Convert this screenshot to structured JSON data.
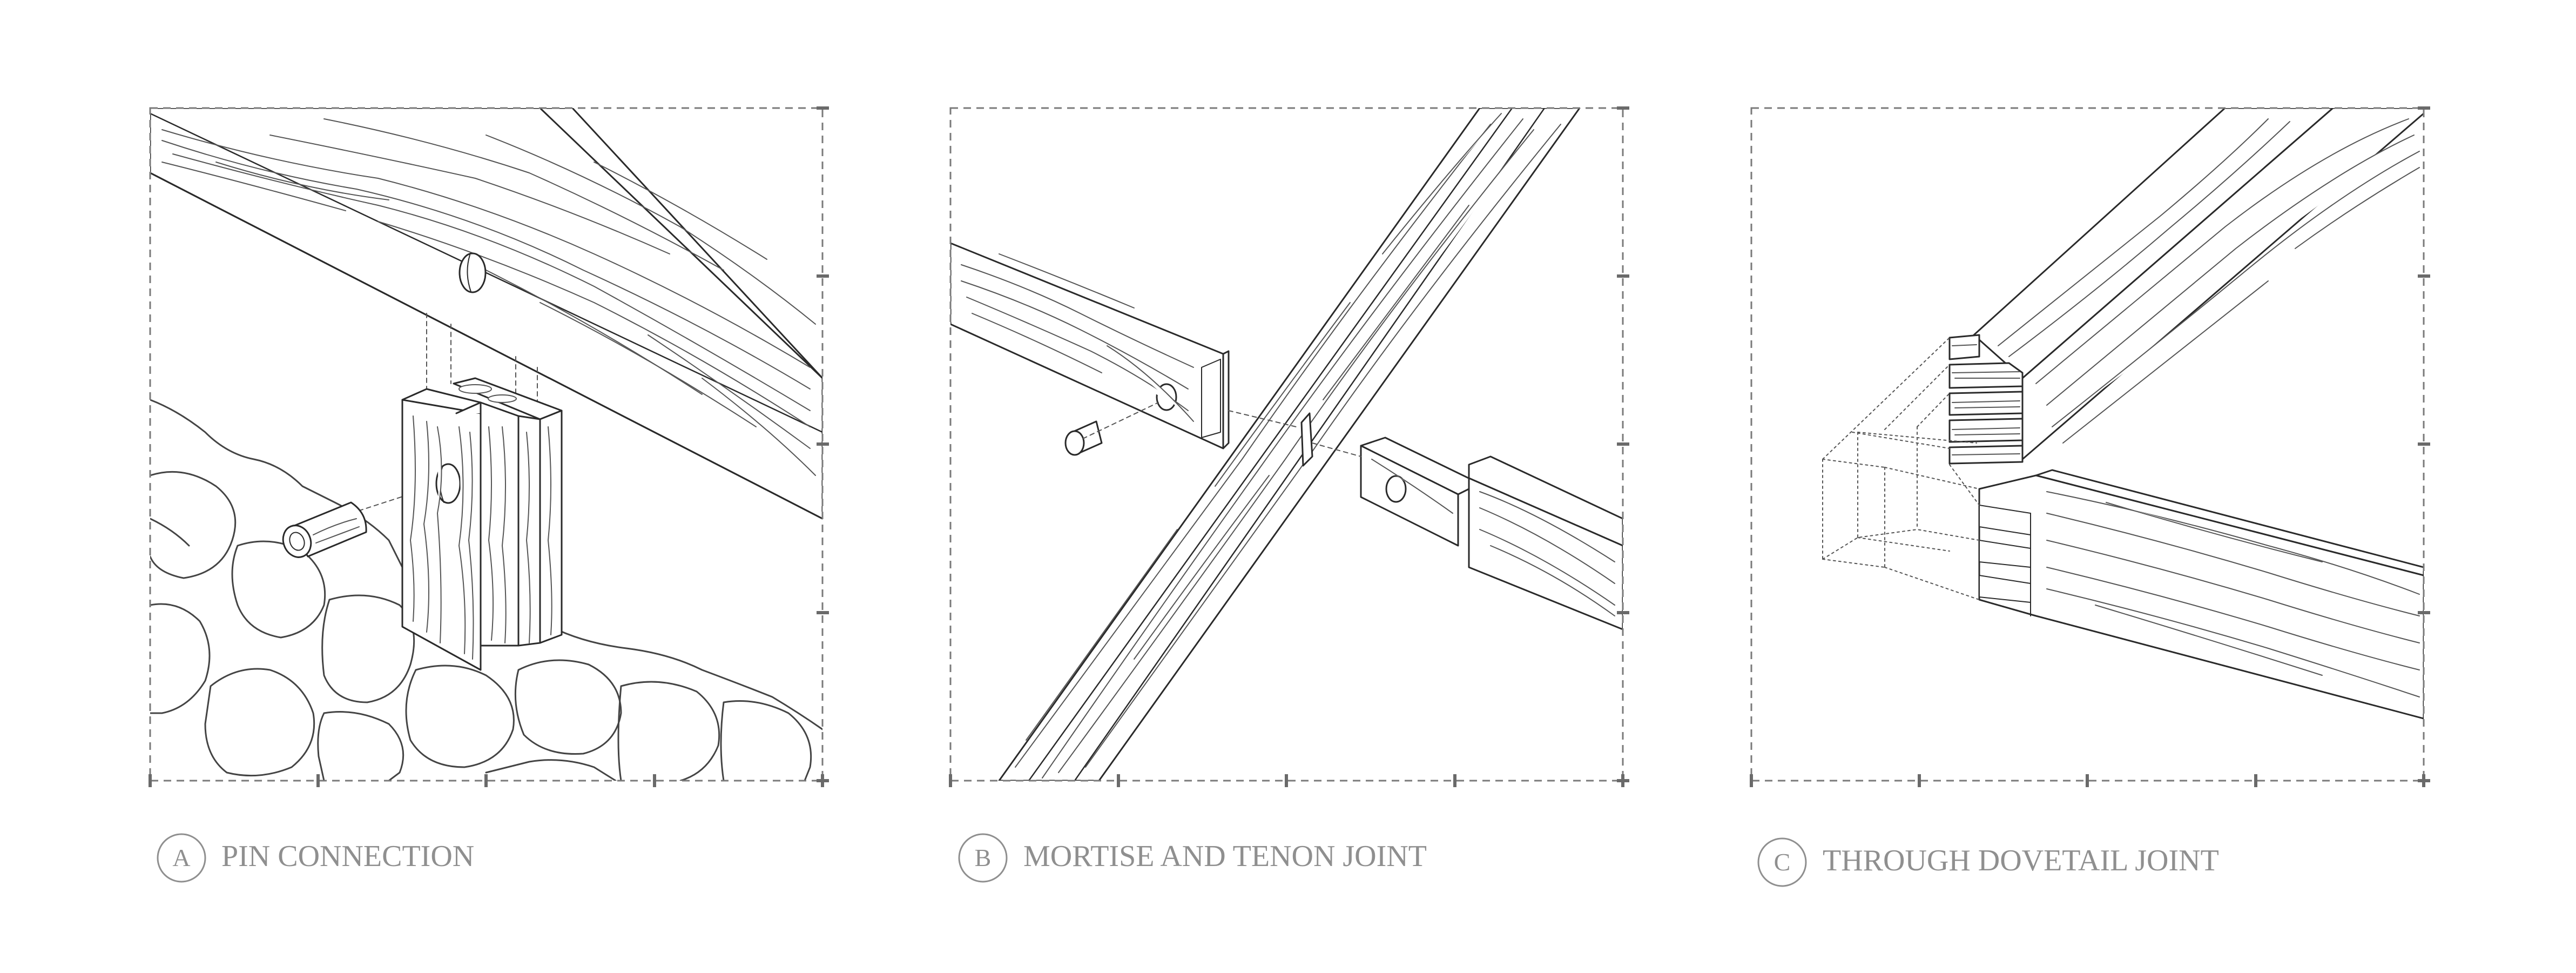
{
  "panels": [
    {
      "letter": "A",
      "caption": "PIN CONNECTION"
    },
    {
      "letter": "B",
      "caption": "MORTISE AND TENON JOINT"
    },
    {
      "letter": "C",
      "caption": "THROUGH DOVETAIL JOINT"
    }
  ],
  "colors": {
    "line": "#2a2a2a",
    "grain": "#555555",
    "frame": "#7a7a7a",
    "caption": "#8f8f8f"
  }
}
